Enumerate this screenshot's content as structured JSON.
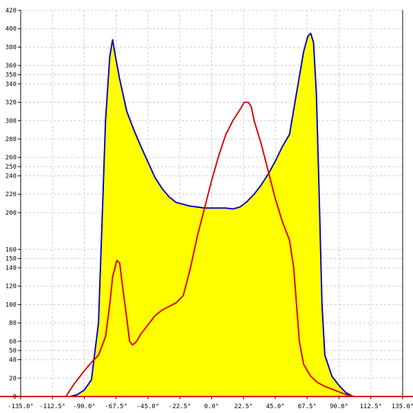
{
  "chart_data": {
    "type": "area",
    "title": "",
    "xlabel": "",
    "ylabel": "",
    "xlim": [
      -135,
      135
    ],
    "ylim": [
      0,
      420
    ],
    "x_unit": "°",
    "grid": true,
    "legend": "none",
    "x_ticks": [
      -135,
      -112.5,
      -90,
      -67.5,
      -45,
      -22.5,
      0,
      22.5,
      45,
      67.5,
      90,
      112.5,
      135
    ],
    "x_tick_labels": [
      "-135.0°",
      "-112.5°",
      "-90.0°",
      "-67.5°",
      "-45.0°",
      "-22.5°",
      "0.0°",
      "22.5°",
      "45.0°",
      "67.5°",
      "90.0°",
      "112.5°",
      "135.0°"
    ],
    "y_ticks": [
      0,
      20,
      40,
      50,
      60,
      80,
      100,
      120,
      140,
      150,
      160,
      200,
      220,
      240,
      250,
      260,
      280,
      300,
      320,
      340,
      350,
      360,
      380,
      400,
      420
    ],
    "y_tick_labels": [
      "0",
      "20",
      "40",
      "50",
      "60",
      "80",
      "100",
      "120",
      "140",
      "150",
      "160",
      "200",
      "220",
      "240",
      "250",
      "260",
      "280",
      "300",
      "320",
      "340",
      "350",
      "360",
      "380",
      "400",
      "420"
    ],
    "series": [
      {
        "color": "#0000cc",
        "fill": "#ffff00",
        "filled": true,
        "points": [
          [
            -135,
            0
          ],
          [
            -100,
            0
          ],
          [
            -95,
            2
          ],
          [
            -90,
            7
          ],
          [
            -85,
            18
          ],
          [
            -80,
            80
          ],
          [
            -77,
            210
          ],
          [
            -75,
            300
          ],
          [
            -72,
            370
          ],
          [
            -70,
            388
          ],
          [
            -68,
            370
          ],
          [
            -65,
            345
          ],
          [
            -60,
            310
          ],
          [
            -55,
            290
          ],
          [
            -50,
            272
          ],
          [
            -45,
            255
          ],
          [
            -40,
            238
          ],
          [
            -35,
            226
          ],
          [
            -30,
            217
          ],
          [
            -25,
            211
          ],
          [
            -20,
            209
          ],
          [
            -15,
            207
          ],
          [
            -10,
            206
          ],
          [
            -5,
            205
          ],
          [
            0,
            205
          ],
          [
            5,
            205
          ],
          [
            10,
            205
          ],
          [
            15,
            204
          ],
          [
            20,
            206
          ],
          [
            25,
            212
          ],
          [
            30,
            220
          ],
          [
            35,
            230
          ],
          [
            40,
            242
          ],
          [
            45,
            256
          ],
          [
            50,
            272
          ],
          [
            55,
            285
          ],
          [
            60,
            330
          ],
          [
            65,
            375
          ],
          [
            68,
            392
          ],
          [
            70,
            395
          ],
          [
            72,
            385
          ],
          [
            74,
            330
          ],
          [
            76,
            220
          ],
          [
            78,
            100
          ],
          [
            80,
            45
          ],
          [
            85,
            22
          ],
          [
            90,
            12
          ],
          [
            95,
            4
          ],
          [
            100,
            0
          ],
          [
            135,
            0
          ]
        ]
      },
      {
        "color": "#dd0000",
        "filled": false,
        "points": [
          [
            -135,
            0
          ],
          [
            -103,
            0
          ],
          [
            -100,
            7
          ],
          [
            -97,
            14
          ],
          [
            -95,
            18
          ],
          [
            -90,
            28
          ],
          [
            -85,
            37
          ],
          [
            -80,
            45
          ],
          [
            -75,
            65
          ],
          [
            -72,
            100
          ],
          [
            -70,
            130
          ],
          [
            -67,
            148
          ],
          [
            -65,
            145
          ],
          [
            -63,
            120
          ],
          [
            -60,
            85
          ],
          [
            -58,
            60
          ],
          [
            -56,
            56
          ],
          [
            -53,
            60
          ],
          [
            -50,
            68
          ],
          [
            -45,
            78
          ],
          [
            -40,
            88
          ],
          [
            -35,
            94
          ],
          [
            -30,
            98
          ],
          [
            -25,
            102
          ],
          [
            -20,
            110
          ],
          [
            -15,
            140
          ],
          [
            -10,
            175
          ],
          [
            -5,
            205
          ],
          [
            0,
            235
          ],
          [
            5,
            262
          ],
          [
            10,
            285
          ],
          [
            15,
            300
          ],
          [
            20,
            312
          ],
          [
            23,
            320
          ],
          [
            26,
            320
          ],
          [
            28,
            315
          ],
          [
            30,
            300
          ],
          [
            35,
            275
          ],
          [
            40,
            245
          ],
          [
            45,
            215
          ],
          [
            50,
            190
          ],
          [
            55,
            170
          ],
          [
            58,
            140
          ],
          [
            60,
            100
          ],
          [
            62,
            60
          ],
          [
            65,
            35
          ],
          [
            70,
            22
          ],
          [
            75,
            15
          ],
          [
            80,
            11
          ],
          [
            85,
            8
          ],
          [
            90,
            5
          ],
          [
            95,
            2
          ],
          [
            100,
            0
          ],
          [
            135,
            0
          ]
        ]
      }
    ]
  }
}
